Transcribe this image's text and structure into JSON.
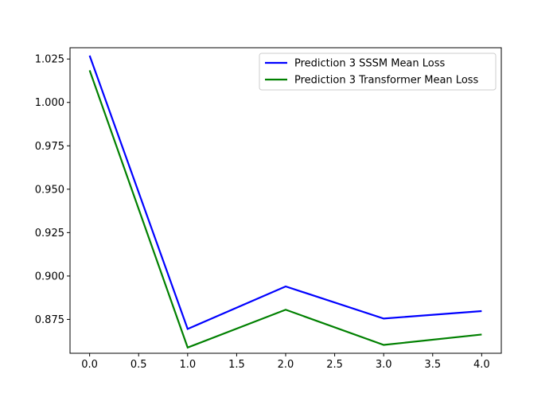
{
  "chart_data": {
    "type": "line",
    "title": "",
    "xlabel": "",
    "ylabel": "",
    "xlim": [
      -0.2,
      4.2
    ],
    "ylim": [
      0.8555,
      1.0315
    ],
    "x_ticks": [
      0.0,
      0.5,
      1.0,
      1.5,
      2.0,
      2.5,
      3.0,
      3.5,
      4.0
    ],
    "x_tick_labels": [
      "0.0",
      "0.5",
      "1.0",
      "1.5",
      "2.0",
      "2.5",
      "3.0",
      "3.5",
      "4.0"
    ],
    "y_ticks": [
      0.875,
      0.9,
      0.925,
      0.95,
      0.975,
      1.0,
      1.025
    ],
    "y_tick_labels": [
      "0.875",
      "0.900",
      "0.925",
      "0.950",
      "0.975",
      "1.000",
      "1.025"
    ],
    "grid": false,
    "legend_position": "upper right",
    "x": [
      0,
      1,
      2,
      3,
      4
    ],
    "series": [
      {
        "name": "Prediction 3 SSSM Mean Loss",
        "color": "#0000ff",
        "values": [
          1.027,
          0.8695,
          0.894,
          0.8755,
          0.8798
        ]
      },
      {
        "name": "Prediction 3 Transformer Mean Loss",
        "color": "#008000",
        "values": [
          1.0185,
          0.8588,
          0.8806,
          0.8603,
          0.8663
        ]
      }
    ]
  }
}
